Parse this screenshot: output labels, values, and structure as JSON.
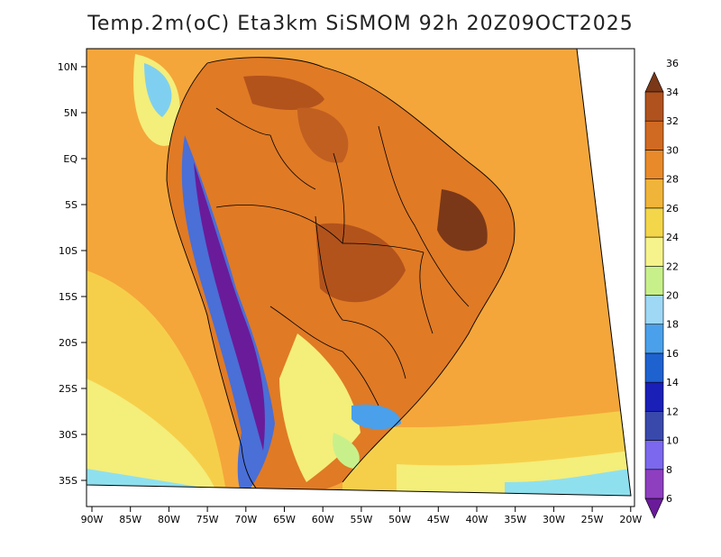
{
  "title": "Temp.2m(oC) Eta3km SiSMOM 92h 20Z09OCT2025",
  "map": {
    "lat_ticks": [
      "10N",
      "5N",
      "EQ",
      "5S",
      "10S",
      "15S",
      "20S",
      "25S",
      "30S",
      "35S"
    ],
    "lon_ticks": [
      "90W",
      "85W",
      "80W",
      "75W",
      "70W",
      "65W",
      "60W",
      "55W",
      "50W",
      "45W",
      "40W",
      "35W",
      "30W",
      "25W",
      "20W"
    ],
    "colors": {
      "ocean_warm": "#f4a63a",
      "ocean_mild": "#f6cf4a",
      "ocean_cool": "#f4ee7a",
      "land_hot": "#e07a25",
      "land_very_hot": "#b2531c",
      "andes": "#4a6fd6",
      "south": "#8fe0ef"
    }
  },
  "legend": {
    "levels": [
      6,
      8,
      10,
      12,
      14,
      16,
      18,
      20,
      22,
      24,
      26,
      28,
      30,
      32,
      34,
      36
    ],
    "labels": [
      "6",
      "8",
      "10",
      "12",
      "14",
      "16",
      "18",
      "20",
      "22",
      "24",
      "26",
      "28",
      "30",
      "32",
      "34",
      "36"
    ],
    "colors": [
      "#6a1b9a",
      "#8e3fc0",
      "#7b68ee",
      "#3949ab",
      "#1a1fb8",
      "#1e62d0",
      "#4aa0ea",
      "#9ed8f5",
      "#c8f08a",
      "#f6f38c",
      "#f4d64a",
      "#f0b43a",
      "#e88a2a",
      "#d06a22",
      "#b0521e",
      "#7a3818"
    ]
  }
}
